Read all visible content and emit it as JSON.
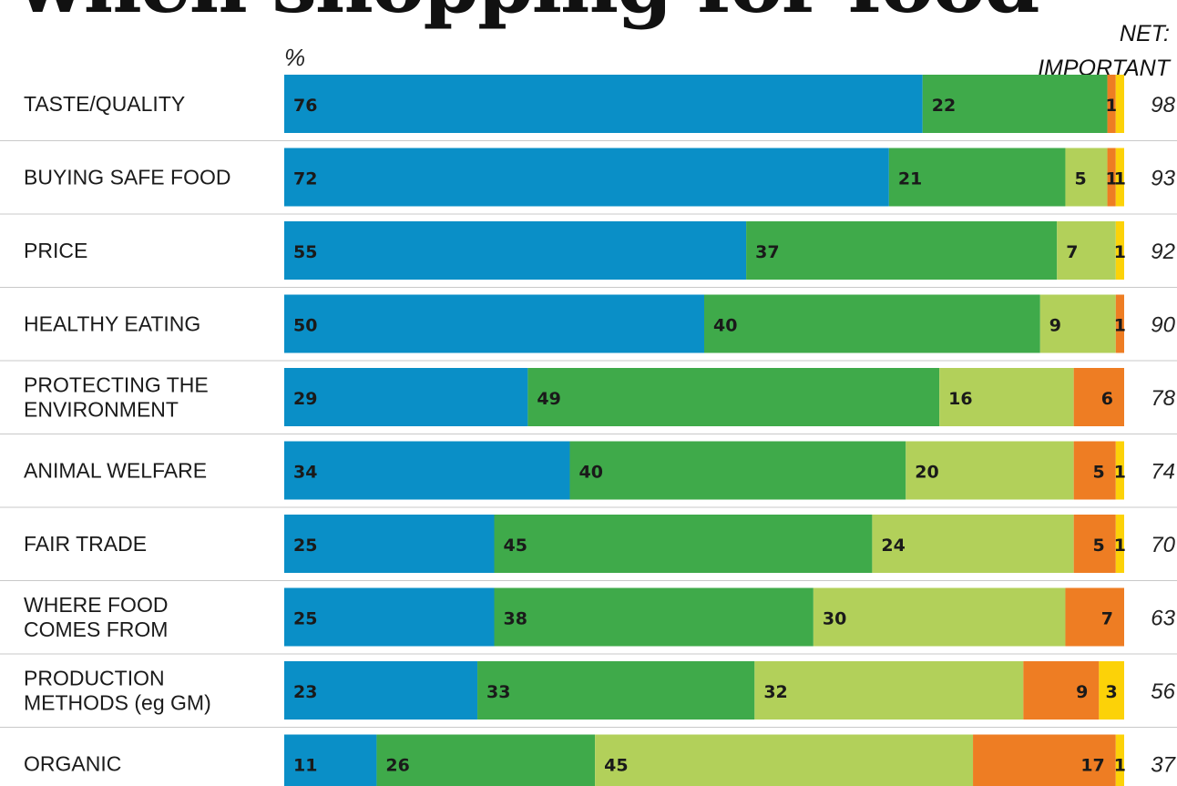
{
  "page": {
    "title": "when shopping for food",
    "unit_label": "%",
    "net_header": [
      "NET:",
      "IMPORTANT"
    ]
  },
  "chart_data": {
    "type": "bar",
    "orientation": "horizontal",
    "stacked": true,
    "title": "",
    "xlabel": "",
    "ylabel": "",
    "xlim": [
      0,
      100
    ],
    "grid": false,
    "categories": [
      "TASTE/QUALITY",
      "BUYING SAFE FOOD",
      "PRICE",
      "HEALTHY EATING",
      "PROTECTING THE ENVIRONMENT",
      "ANIMAL WELFARE",
      "FAIR TRADE",
      "WHERE FOOD COMES FROM",
      "PRODUCTION METHODS (eg GM)",
      "ORGANIC"
    ],
    "category_lines": [
      [
        "TASTE/QUALITY"
      ],
      [
        "BUYING SAFE FOOD"
      ],
      [
        "PRICE"
      ],
      [
        "HEALTHY EATING"
      ],
      [
        "PROTECTING THE",
        "ENVIRONMENT"
      ],
      [
        "ANIMAL WELFARE"
      ],
      [
        "FAIR TRADE"
      ],
      [
        "WHERE FOOD",
        "COMES FROM"
      ],
      [
        "PRODUCTION",
        "METHODS (eg GM)"
      ],
      [
        "ORGANIC"
      ]
    ],
    "series": [
      {
        "color": "#0a8fc7",
        "values": [
          76,
          72,
          55,
          50,
          29,
          34,
          25,
          25,
          23,
          11
        ]
      },
      {
        "color": "#3faa4a",
        "values": [
          22,
          21,
          37,
          40,
          49,
          40,
          45,
          38,
          33,
          26
        ]
      },
      {
        "color": "#b2d05a",
        "values": [
          0,
          5,
          7,
          9,
          16,
          20,
          24,
          30,
          32,
          45
        ]
      },
      {
        "color": "#ee7d23",
        "values": [
          1,
          1,
          0,
          1,
          6,
          5,
          5,
          7,
          9,
          17
        ]
      },
      {
        "color": "#fcd208",
        "values": [
          1,
          1,
          1,
          0,
          0,
          1,
          1,
          0,
          3,
          1
        ]
      }
    ],
    "segment_labels": [
      [
        "76",
        "22",
        "",
        "1",
        ""
      ],
      [
        "72",
        "21",
        "5",
        "1",
        "1"
      ],
      [
        "55",
        "37",
        "7",
        "",
        "1"
      ],
      [
        "50",
        "40",
        "9",
        "1",
        ""
      ],
      [
        "29",
        "49",
        "16",
        "6",
        ""
      ],
      [
        "34",
        "40",
        "20",
        "5",
        "1"
      ],
      [
        "25",
        "45",
        "24",
        "5",
        "1"
      ],
      [
        "25",
        "38",
        "30",
        "7",
        ""
      ],
      [
        "23",
        "33",
        "32",
        "9",
        "3"
      ],
      [
        "11",
        "26",
        "45",
        "17",
        "1"
      ]
    ],
    "net_important": [
      98,
      93,
      92,
      90,
      78,
      74,
      70,
      63,
      56,
      37
    ]
  }
}
